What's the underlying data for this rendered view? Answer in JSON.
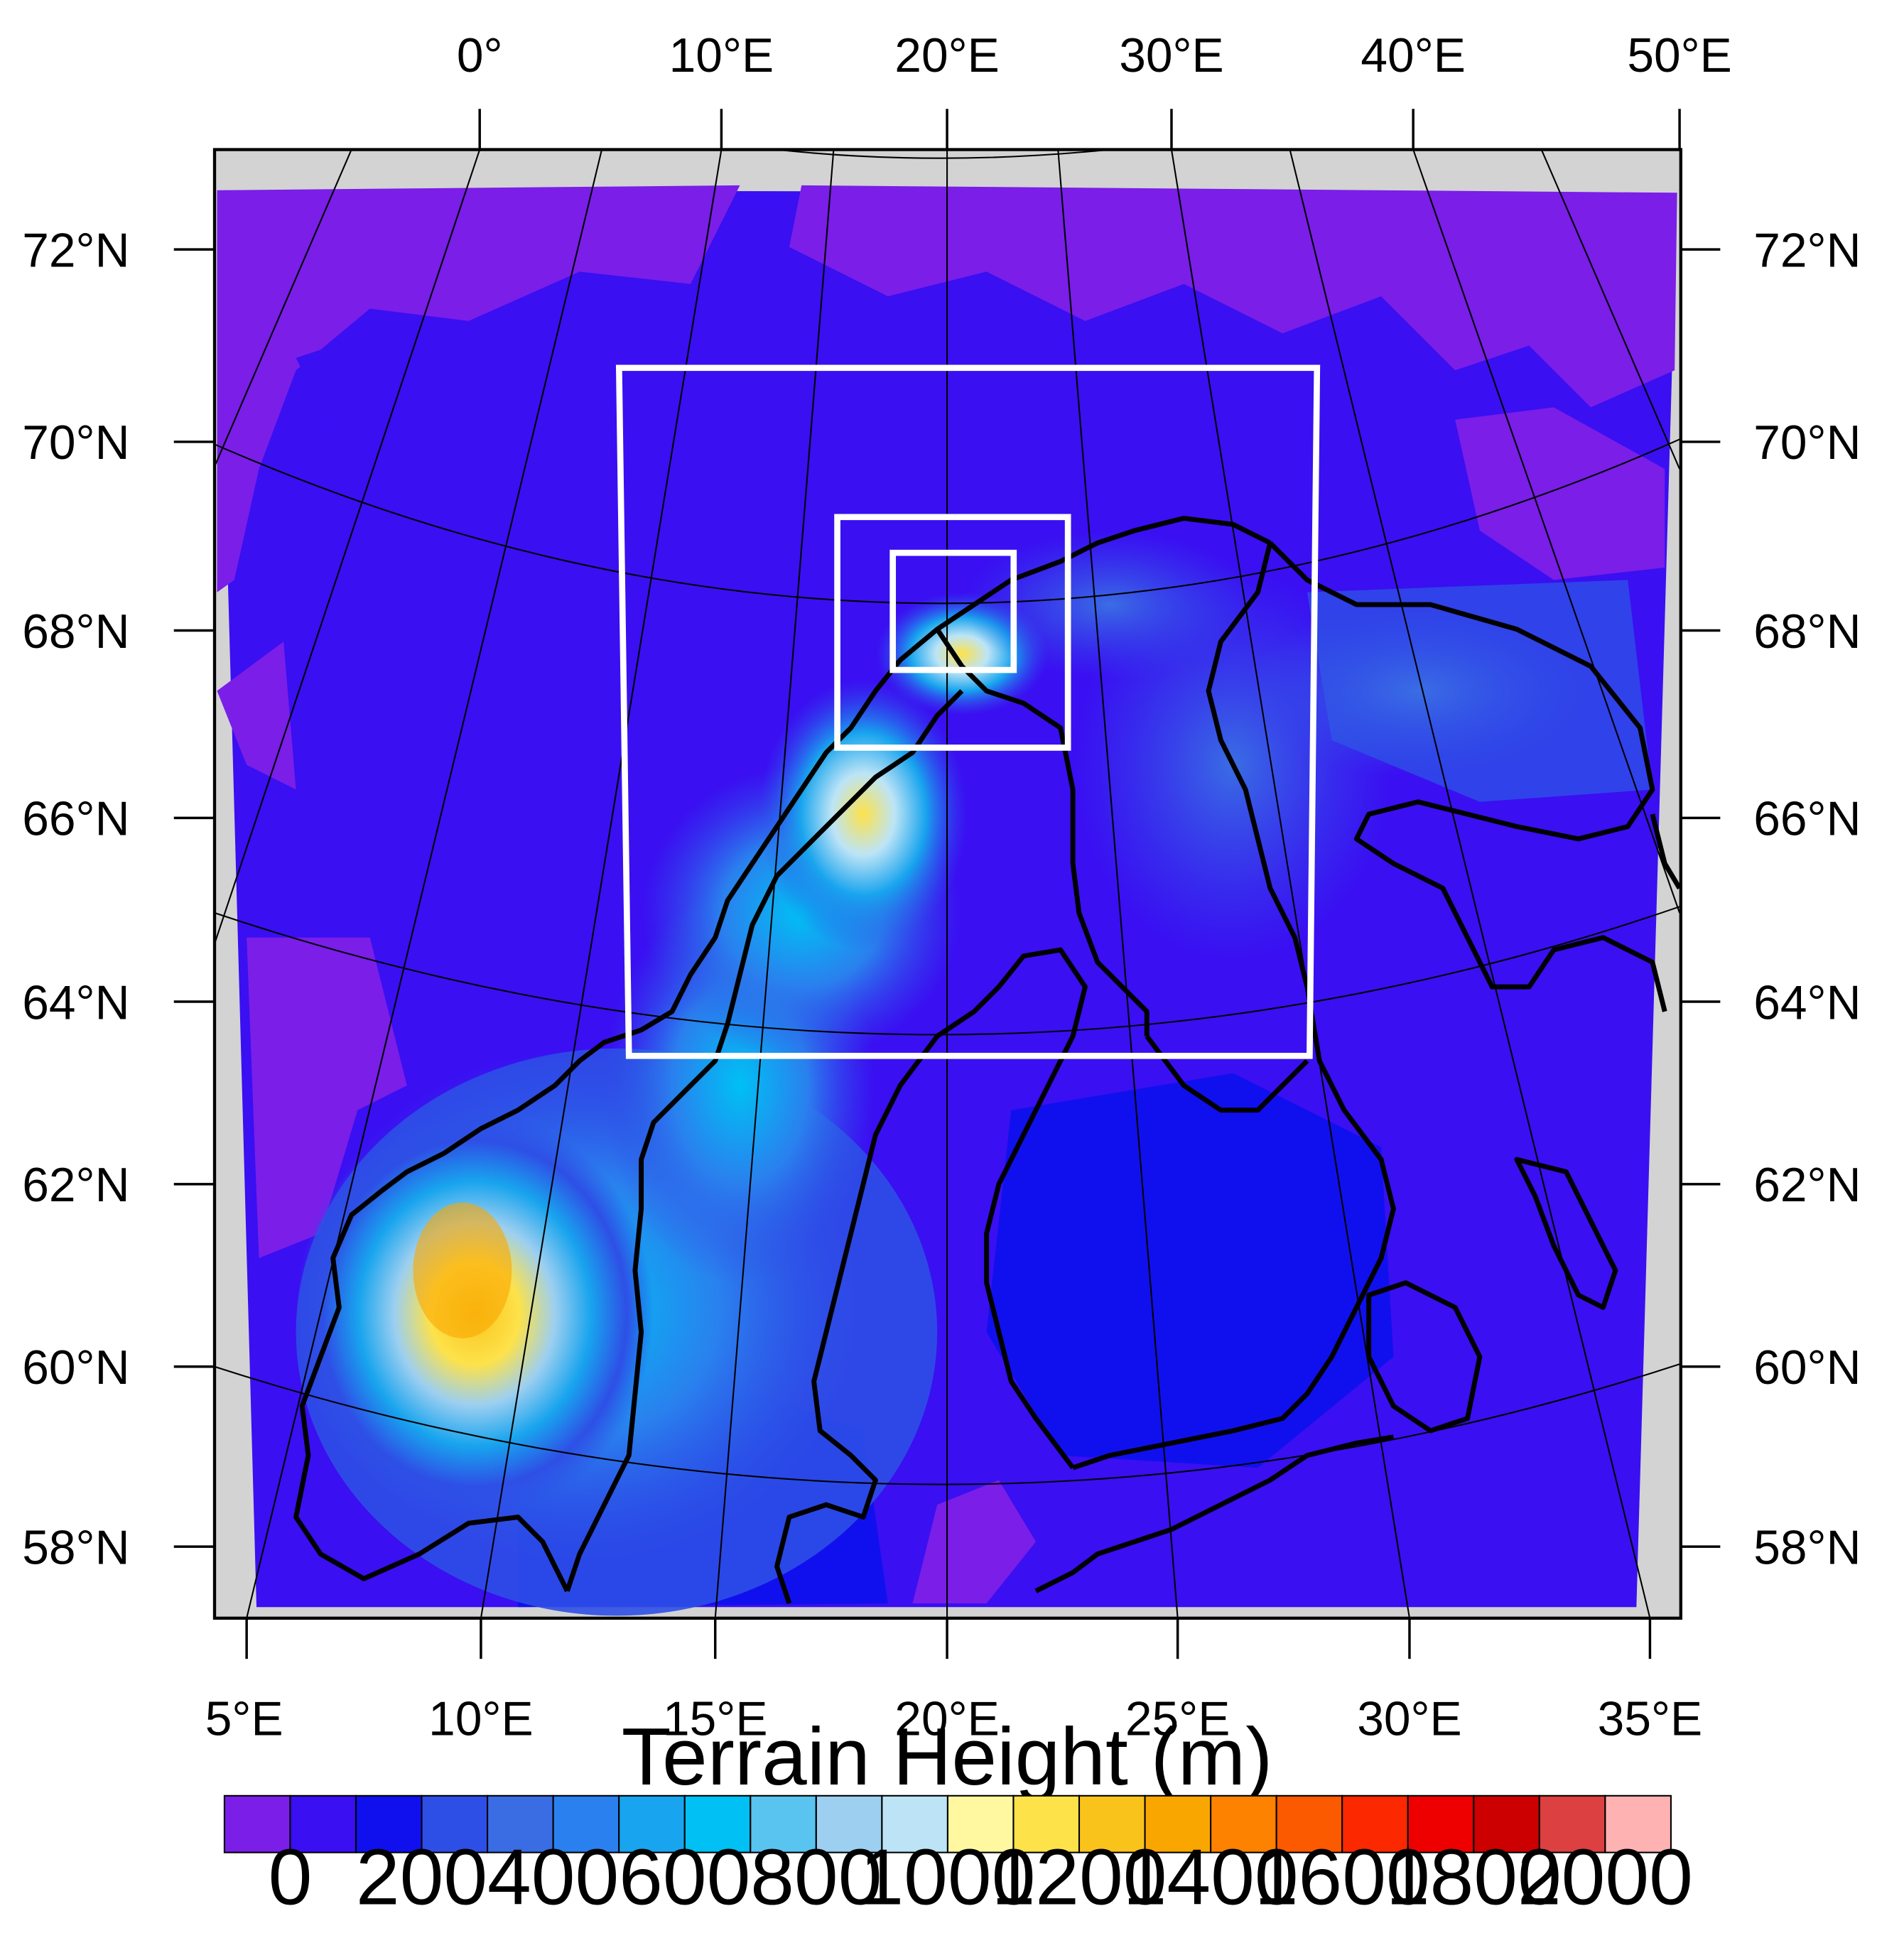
{
  "map": {
    "top_axis_labels": [
      "0°",
      "10°E",
      "20°E",
      "30°E",
      "40°E",
      "50°E"
    ],
    "bottom_axis_labels": [
      "5°E",
      "10°E",
      "15°E",
      "20°E",
      "25°E",
      "30°E",
      "35°E"
    ],
    "left_axis_labels": [
      "72°N",
      "70°N",
      "68°N",
      "66°N",
      "64°N",
      "62°N",
      "60°N",
      "58°N"
    ],
    "right_axis_labels": [
      "72°N",
      "70°N",
      "68°N",
      "66°N",
      "64°N",
      "62°N",
      "60°N",
      "58°N"
    ],
    "nested_domains": [
      "domain-d02",
      "domain-d03",
      "domain-d04"
    ],
    "background_color": "#d3d3d3",
    "ocean_color": "#3a0ff2",
    "domain_box_color": "#ffffff",
    "coastline_color": "#000000"
  },
  "colorbar": {
    "title": "Terrain Height (m)",
    "tick_labels": [
      "0",
      "200",
      "400",
      "600",
      "800",
      "1000",
      "1200",
      "1400",
      "1600",
      "1800",
      "2000"
    ],
    "colors": [
      "#7a1ee8",
      "#3a0ff2",
      "#1010ee",
      "#2e4fe6",
      "#3a6de4",
      "#2a80ee",
      "#18a4ee",
      "#00c0f4",
      "#5ac4f0",
      "#9ccff0",
      "#bde4f6",
      "#fff8a0",
      "#fde24a",
      "#fac31c",
      "#faa600",
      "#fc8200",
      "#fc5a00",
      "#fc2800",
      "#ee0000",
      "#cc0000",
      "#dc4040",
      "#ffb2b2"
    ]
  }
}
